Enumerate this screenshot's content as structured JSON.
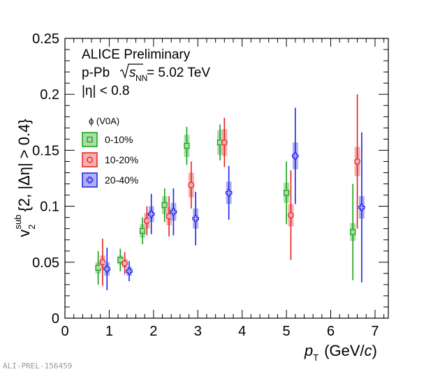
{
  "chart_data": {
    "type": "scatter",
    "title": "",
    "xlabel": {
      "symbol": "p",
      "subscript": "T",
      "unit_open": "(GeV/",
      "unit_italic": "c",
      "unit_close": ")"
    },
    "ylabel": {
      "symbol": "v",
      "subscript": "2",
      "superscript": "sub",
      "condition": "{2, |Δη| > 0.4}"
    },
    "xlim": [
      0,
      7.3
    ],
    "ylim": [
      0,
      0.25
    ],
    "x_ticks": [
      0,
      1,
      2,
      3,
      4,
      5,
      6,
      7
    ],
    "y_ticks": [
      0,
      0.05,
      0.1,
      0.15,
      0.2,
      0.25
    ],
    "y_tick_labels": [
      "0",
      "0.05",
      "0.1",
      "0.15",
      "0.2",
      "0.25"
    ],
    "annotations": [
      {
        "text": "ALICE Preliminary"
      },
      {
        "text_prefix": "p-Pb  ",
        "sqrt_symbol": "s",
        "sqrt_sub": "NN",
        "text_suffix": " = 5.02 TeV"
      },
      {
        "text": "|η| < 0.8"
      }
    ],
    "legend": {
      "title": "ϕ (V0A)",
      "placement": "top-left"
    },
    "series": [
      {
        "name": "0-10%",
        "color": "#14a014",
        "fill": "#a8dfa8",
        "marker": "square",
        "points": [
          {
            "x": 0.75,
            "y": 0.045,
            "stat": 0.015,
            "sys": 0.005
          },
          {
            "x": 1.25,
            "y": 0.052,
            "stat": 0.01,
            "sys": 0.004
          },
          {
            "x": 1.75,
            "y": 0.078,
            "stat": 0.012,
            "sys": 0.006
          },
          {
            "x": 2.25,
            "y": 0.101,
            "stat": 0.015,
            "sys": 0.008
          },
          {
            "x": 2.75,
            "y": 0.154,
            "stat": 0.017,
            "sys": 0.01
          },
          {
            "x": 3.5,
            "y": 0.157,
            "stat": 0.016,
            "sys": 0.011
          },
          {
            "x": 5.0,
            "y": 0.112,
            "stat": 0.028,
            "sys": 0.009
          },
          {
            "x": 6.5,
            "y": 0.077,
            "stat": 0.043,
            "sys": 0.008
          }
        ]
      },
      {
        "name": "10-20%",
        "color": "#e51e1e",
        "fill": "#f4b0b0",
        "marker": "circle",
        "points": [
          {
            "x": 0.85,
            "y": 0.05,
            "stat": 0.021,
            "sys": 0.006
          },
          {
            "x": 1.35,
            "y": 0.049,
            "stat": 0.01,
            "sys": 0.004
          },
          {
            "x": 1.85,
            "y": 0.087,
            "stat": 0.013,
            "sys": 0.007
          },
          {
            "x": 2.35,
            "y": 0.091,
            "stat": 0.018,
            "sys": 0.008
          },
          {
            "x": 2.85,
            "y": 0.119,
            "stat": 0.021,
            "sys": 0.011
          },
          {
            "x": 3.6,
            "y": 0.157,
            "stat": 0.022,
            "sys": 0.012
          },
          {
            "x": 5.1,
            "y": 0.092,
            "stat": 0.04,
            "sys": 0.01
          },
          {
            "x": 6.6,
            "y": 0.14,
            "stat": 0.06,
            "sys": 0.013
          }
        ]
      },
      {
        "name": "20-40%",
        "color": "#1e1ee6",
        "fill": "#b0b0f4",
        "marker": "cross",
        "points": [
          {
            "x": 0.95,
            "y": 0.044,
            "stat": 0.019,
            "sys": 0.006
          },
          {
            "x": 1.45,
            "y": 0.042,
            "stat": 0.009,
            "sys": 0.004
          },
          {
            "x": 1.95,
            "y": 0.093,
            "stat": 0.018,
            "sys": 0.007
          },
          {
            "x": 2.45,
            "y": 0.095,
            "stat": 0.021,
            "sys": 0.008
          },
          {
            "x": 2.95,
            "y": 0.089,
            "stat": 0.024,
            "sys": 0.009
          },
          {
            "x": 3.7,
            "y": 0.112,
            "stat": 0.024,
            "sys": 0.01
          },
          {
            "x": 5.2,
            "y": 0.145,
            "stat": 0.043,
            "sys": 0.012
          },
          {
            "x": 6.7,
            "y": 0.099,
            "stat": 0.067,
            "sys": 0.01
          }
        ]
      }
    ]
  },
  "footer": {
    "label": "ALI-PREL-156459"
  }
}
